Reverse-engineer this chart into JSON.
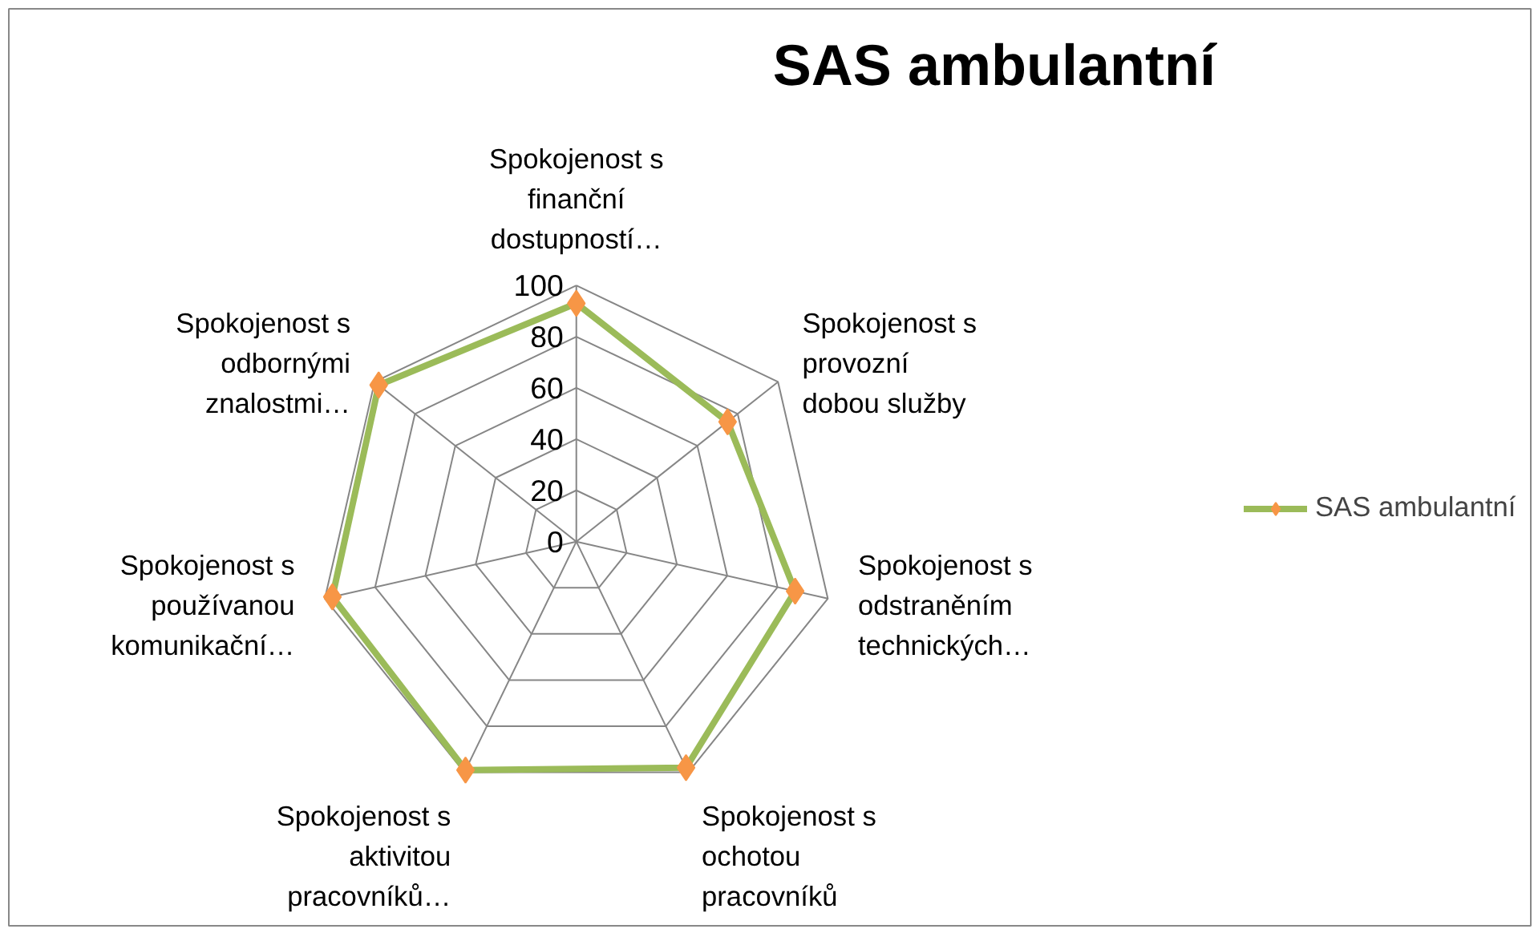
{
  "chart_data": {
    "type": "radar",
    "title": "SAS ambulantní",
    "categories": [
      "Spokojenost s finanční dostupností…",
      "Spokojenost s provozní dobou služby",
      "Spokojenost s odstraněním technických…",
      "Spokojenost s ochotou pracovníků",
      "Spokojenost s aktivitou pracovníků…",
      "Spokojenost s používanou komunikační…",
      "Spokojenost s odbornými znalostmi…"
    ],
    "series": [
      {
        "name": "SAS ambulantní",
        "color": "#9bbb59",
        "values": [
          93,
          75,
          87,
          98,
          99,
          97,
          98
        ]
      }
    ],
    "ylim": [
      0,
      100
    ],
    "yticks": [
      0,
      20,
      40,
      60,
      80,
      100
    ],
    "marker": "diamond",
    "legend": "right",
    "grid": true
  }
}
